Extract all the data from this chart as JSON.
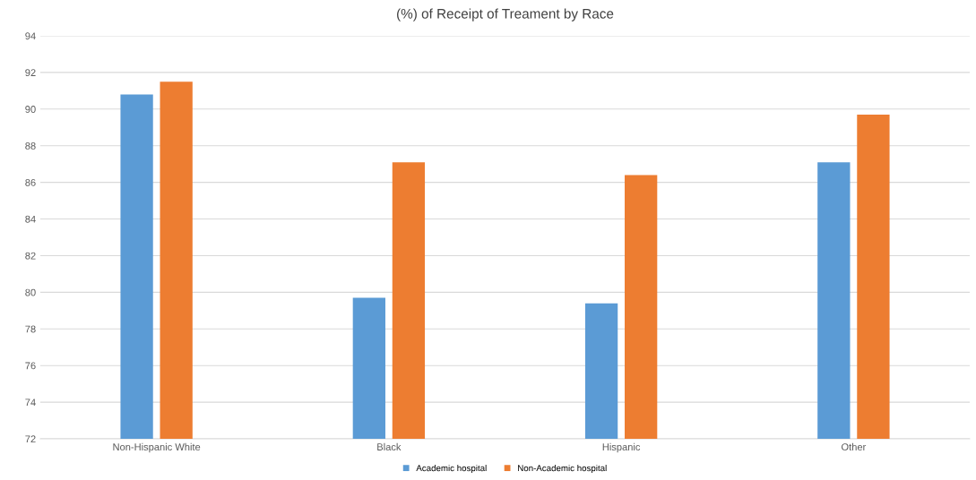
{
  "chart_data": {
    "type": "bar",
    "title": "(%) of Receipt of Treament by Race",
    "categories": [
      "Non-Hispanic White",
      "Black",
      "Hispanic",
      "Other"
    ],
    "series": [
      {
        "name": "Academic hospital",
        "color": "#5b9bd5",
        "values": [
          90.8,
          79.7,
          79.4,
          87.1
        ]
      },
      {
        "name": "Non-Academic hospital",
        "color": "#ed7d31",
        "values": [
          91.5,
          87.1,
          86.4,
          89.7
        ]
      }
    ],
    "ylim": [
      72,
      94
    ],
    "yticks": [
      72,
      74,
      76,
      78,
      80,
      82,
      84,
      86,
      88,
      90,
      92,
      94
    ],
    "grid": "y",
    "legend": "bottom"
  }
}
